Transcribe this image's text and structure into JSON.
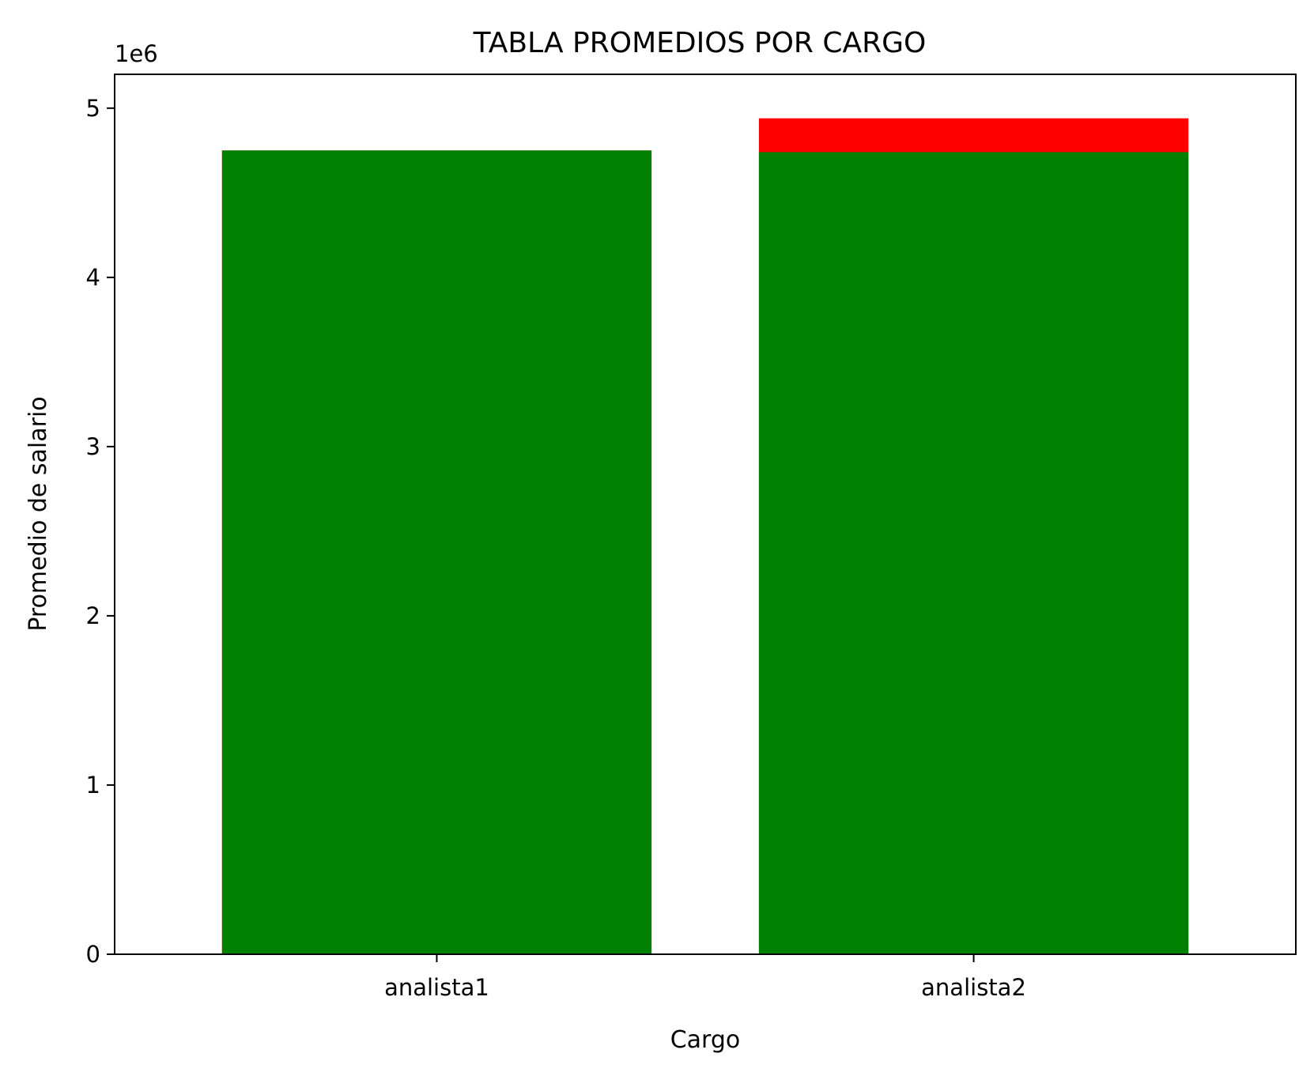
{
  "chart_data": {
    "type": "bar",
    "title": "TABLA PROMEDIOS POR CARGO",
    "xlabel": "Cargo",
    "ylabel": "Promedio de salario",
    "y_offset_label": "1e6",
    "categories": [
      "analista1",
      "analista2"
    ],
    "series": [
      {
        "values": [
          4.75,
          4.74
        ],
        "color": "#008000"
      },
      {
        "values": [
          4.75,
          4.94
        ],
        "color": "#ff0000"
      }
    ],
    "draw_order": "red drawn first, green drawn on top (overlapping bars)",
    "ylim": [
      0,
      5.2
    ],
    "yticks": [
      "0",
      "1",
      "2",
      "3",
      "4",
      "5"
    ],
    "ytick_values": [
      0,
      1,
      2,
      3,
      4,
      5
    ],
    "grid": false,
    "legend": "none"
  }
}
